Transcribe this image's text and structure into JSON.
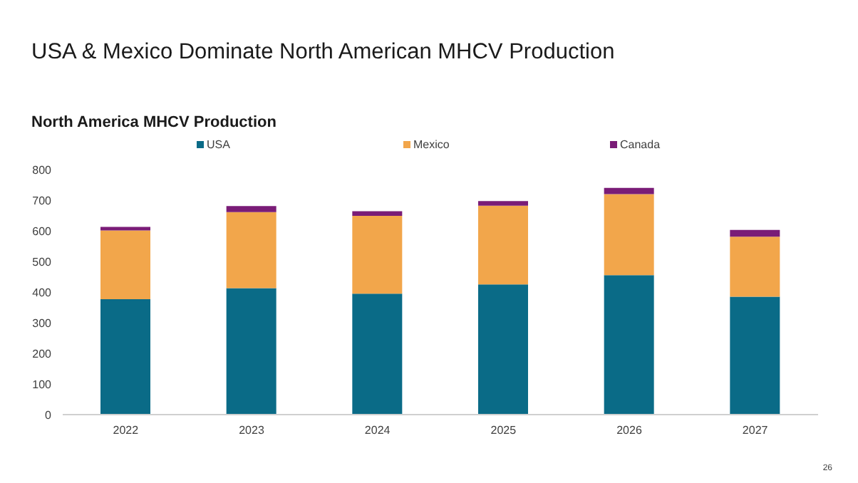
{
  "chart_data": {
    "type": "bar",
    "title": "USA & Mexico Dominate North American MHCV Production",
    "subtitle": "North America MHCV Production",
    "categories": [
      "2022",
      "2023",
      "2024",
      "2025",
      "2026",
      "2027"
    ],
    "series": [
      {
        "name": "USA",
        "color": "#0a6b87",
        "values": [
          377,
          413,
          395,
          425,
          455,
          385
        ]
      },
      {
        "name": "Mexico",
        "color": "#f2a64b",
        "values": [
          224,
          248,
          254,
          257,
          265,
          196
        ]
      },
      {
        "name": "Canada",
        "color": "#7a1c77",
        "values": [
          12,
          20,
          15,
          15,
          20,
          22
        ]
      }
    ],
    "stacked": true,
    "ylim": [
      0,
      800
    ],
    "yticks": [
      0,
      100,
      200,
      300,
      400,
      500,
      600,
      700,
      800
    ],
    "legend": "top",
    "annotations": [
      "26"
    ]
  }
}
